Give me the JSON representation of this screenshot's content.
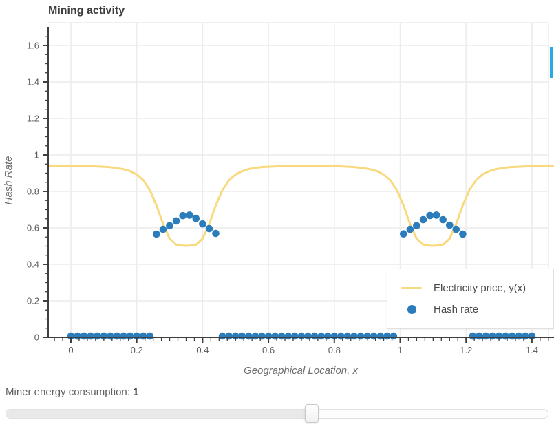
{
  "chart_data": {
    "type": "line",
    "title": "Mining activity",
    "xlabel": "Geographical Location, x",
    "ylabel": "Hash Rate",
    "xlim": [
      -0.07,
      1.47
    ],
    "ylim": [
      0,
      1.7
    ],
    "x_ticks": [
      0,
      0.2,
      0.4,
      0.6,
      0.8,
      1,
      1.2,
      1.4
    ],
    "x_tick_labels": [
      "0",
      "0.2",
      "0.4",
      "0.6",
      "0.8",
      "1",
      "1.2",
      "1.4"
    ],
    "y_ticks": [
      0,
      0.2,
      0.4,
      0.6,
      0.8,
      1,
      1.2,
      1.4,
      1.6
    ],
    "y_tick_labels": [
      "0",
      "0.2",
      "0.4",
      "0.6",
      "0.8",
      "1",
      "1.2",
      "1.4",
      "1.6"
    ],
    "x_minor_step": 0.025,
    "y_minor_step": 0.05,
    "grid": true,
    "legend_position": "bottom-right",
    "series": [
      {
        "name": "Electricity price, y(x)",
        "type": "line",
        "color": "#f9d97d",
        "points": [
          [
            -0.07,
            0.942
          ],
          [
            0.0,
            0.941
          ],
          [
            0.06,
            0.939
          ],
          [
            0.12,
            0.933
          ],
          [
            0.16,
            0.922
          ],
          [
            0.18,
            0.911
          ],
          [
            0.2,
            0.893
          ],
          [
            0.22,
            0.861
          ],
          [
            0.24,
            0.807
          ],
          [
            0.26,
            0.723
          ],
          [
            0.28,
            0.621
          ],
          [
            0.3,
            0.541
          ],
          [
            0.32,
            0.508
          ],
          [
            0.34,
            0.503
          ],
          [
            0.35,
            0.502
          ],
          [
            0.36,
            0.503
          ],
          [
            0.38,
            0.508
          ],
          [
            0.4,
            0.541
          ],
          [
            0.42,
            0.621
          ],
          [
            0.44,
            0.723
          ],
          [
            0.46,
            0.807
          ],
          [
            0.48,
            0.861
          ],
          [
            0.5,
            0.893
          ],
          [
            0.52,
            0.911
          ],
          [
            0.54,
            0.923
          ],
          [
            0.58,
            0.934
          ],
          [
            0.64,
            0.939
          ],
          [
            0.72,
            0.941
          ],
          [
            0.8,
            0.939
          ],
          [
            0.86,
            0.934
          ],
          [
            0.9,
            0.925
          ],
          [
            0.93,
            0.911
          ],
          [
            0.95,
            0.892
          ],
          [
            0.97,
            0.861
          ],
          [
            0.99,
            0.807
          ],
          [
            1.01,
            0.723
          ],
          [
            1.03,
            0.621
          ],
          [
            1.05,
            0.541
          ],
          [
            1.07,
            0.508
          ],
          [
            1.09,
            0.503
          ],
          [
            1.1,
            0.502
          ],
          [
            1.11,
            0.503
          ],
          [
            1.13,
            0.508
          ],
          [
            1.15,
            0.541
          ],
          [
            1.17,
            0.621
          ],
          [
            1.19,
            0.723
          ],
          [
            1.21,
            0.807
          ],
          [
            1.23,
            0.861
          ],
          [
            1.25,
            0.893
          ],
          [
            1.27,
            0.911
          ],
          [
            1.29,
            0.922
          ],
          [
            1.33,
            0.933
          ],
          [
            1.4,
            0.939
          ],
          [
            1.47,
            0.941
          ]
        ]
      },
      {
        "name": "Hash rate",
        "type": "scatter",
        "color": "#2a7cba",
        "marker_radius": 5.3,
        "points": [
          [
            0.26,
            0.566
          ],
          [
            0.28,
            0.592
          ],
          [
            0.3,
            0.612
          ],
          [
            0.32,
            0.638
          ],
          [
            0.34,
            0.667
          ],
          [
            0.36,
            0.67
          ],
          [
            0.38,
            0.652
          ],
          [
            0.4,
            0.622
          ],
          [
            0.42,
            0.596
          ],
          [
            0.44,
            0.57
          ],
          [
            1.01,
            0.567
          ],
          [
            1.03,
            0.592
          ],
          [
            1.05,
            0.612
          ],
          [
            1.07,
            0.645
          ],
          [
            1.09,
            0.668
          ],
          [
            1.11,
            0.67
          ],
          [
            1.13,
            0.645
          ],
          [
            1.15,
            0.615
          ],
          [
            1.17,
            0.592
          ],
          [
            1.19,
            0.566
          ]
        ],
        "zero_segments": [
          {
            "from": 0.0,
            "to": 0.24,
            "step": 0.02,
            "y": 0.007
          },
          {
            "from": 0.46,
            "to": 0.98,
            "step": 0.02,
            "y": 0.007
          },
          {
            "from": 1.22,
            "to": 1.4,
            "step": 0.02,
            "y": 0.007
          }
        ]
      }
    ]
  },
  "controls": {
    "slider_label": "Miner energy consumption:",
    "slider_value": "1",
    "slider_percent": 56.4
  },
  "misc": {
    "scroll_indicator_color": "#2ba9e1",
    "grid_color": "#ececec",
    "axis_color": "#3f3f3f"
  }
}
